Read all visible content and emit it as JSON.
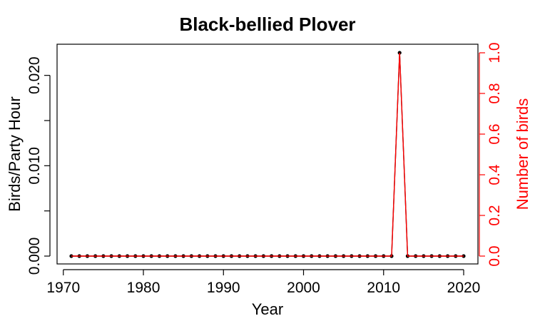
{
  "chart_data": {
    "type": "line",
    "title": "Black-bellied Plover",
    "xlabel": "Year",
    "ylabel": "Birds/Party Hour",
    "y2label": "Number of birds",
    "xlim": [
      1971,
      2020
    ],
    "ylim": [
      0,
      0.0225
    ],
    "y2lim": [
      0,
      1.0
    ],
    "xticks": [
      1970,
      1980,
      1990,
      2000,
      2010,
      2020
    ],
    "yticks": [
      "0.000",
      "0.010",
      "0.020"
    ],
    "yticks_minor": [
      0.005,
      0.015
    ],
    "y2ticks": [
      "0.0",
      "0.2",
      "0.4",
      "0.6",
      "0.8",
      "1.0"
    ],
    "grid": false,
    "colors": {
      "primary": "#000000",
      "secondary": "#ff0000"
    },
    "x": [
      1971,
      1972,
      1973,
      1974,
      1975,
      1976,
      1977,
      1978,
      1979,
      1980,
      1981,
      1982,
      1983,
      1984,
      1985,
      1986,
      1987,
      1988,
      1989,
      1990,
      1991,
      1992,
      1993,
      1994,
      1995,
      1996,
      1997,
      1998,
      1999,
      2000,
      2001,
      2002,
      2003,
      2004,
      2005,
      2006,
      2007,
      2008,
      2009,
      2010,
      2011,
      2012,
      2013,
      2014,
      2015,
      2016,
      2017,
      2018,
      2019,
      2020
    ],
    "series": [
      {
        "axis": "left",
        "values": [
          0,
          0,
          0,
          0,
          0,
          0,
          0,
          0,
          0,
          0,
          0,
          0,
          0,
          0,
          0,
          0,
          0,
          0,
          0,
          0,
          0,
          0,
          0,
          0,
          0,
          0,
          0,
          0,
          0,
          0,
          0,
          0,
          0,
          0,
          0,
          0,
          0,
          0,
          0,
          0,
          0,
          0.0225,
          0,
          0,
          0,
          0,
          0,
          0,
          0,
          0
        ]
      },
      {
        "axis": "right",
        "values": [
          0,
          0,
          0,
          0,
          0,
          0,
          0,
          0,
          0,
          0,
          0,
          0,
          0,
          0,
          0,
          0,
          0,
          0,
          0,
          0,
          0,
          0,
          0,
          0,
          0,
          0,
          0,
          0,
          0,
          0,
          0,
          0,
          0,
          0,
          0,
          0,
          0,
          0,
          0,
          0,
          0,
          1,
          0,
          0,
          0,
          0,
          0,
          0,
          0,
          0
        ]
      }
    ]
  }
}
